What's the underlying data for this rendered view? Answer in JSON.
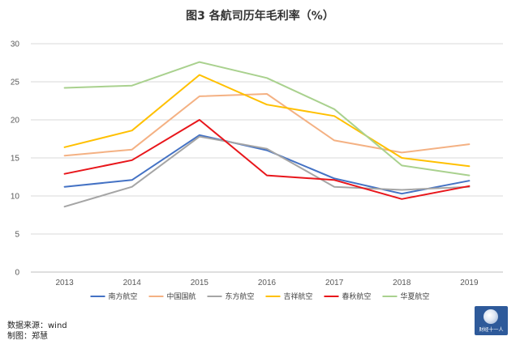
{
  "chart_data": {
    "type": "line",
    "title": "图3 各航司历年毛利率（%）",
    "xlabel": "",
    "ylabel": "",
    "categories": [
      "2013",
      "2014",
      "2015",
      "2016",
      "2017",
      "2018",
      "2019"
    ],
    "ylim": [
      0,
      30
    ],
    "yticks": [
      0,
      5,
      10,
      15,
      20,
      25,
      30
    ],
    "grid": true,
    "legend_position": "bottom",
    "series": [
      {
        "name": "南方航空",
        "color": "#4472c4",
        "values": [
          11.2,
          12.1,
          18.0,
          16.0,
          12.3,
          10.3,
          12.0
        ]
      },
      {
        "name": "中国国航",
        "color": "#f4b183",
        "values": [
          15.3,
          16.1,
          23.1,
          23.4,
          17.3,
          15.7,
          16.8
        ]
      },
      {
        "name": "东方航空",
        "color": "#a5a5a5",
        "values": [
          8.6,
          11.2,
          17.8,
          16.2,
          11.2,
          10.8,
          11.2
        ]
      },
      {
        "name": "吉祥航空",
        "color": "#ffc000",
        "values": [
          16.4,
          18.6,
          25.9,
          22.0,
          20.5,
          15.0,
          13.9
        ]
      },
      {
        "name": "春秋航空",
        "color": "#e8161b",
        "values": [
          12.9,
          14.7,
          20.0,
          12.7,
          12.1,
          9.6,
          11.3
        ]
      },
      {
        "name": "华夏航空",
        "color": "#a9d18e",
        "values": [
          24.2,
          24.5,
          27.6,
          25.5,
          21.4,
          14.0,
          12.7
        ]
      }
    ]
  },
  "footer": {
    "source": "数据来源：wind",
    "author": "制图：郑慧"
  },
  "logo": {
    "text": "财经十一人",
    "color": "#2e5a9a"
  }
}
